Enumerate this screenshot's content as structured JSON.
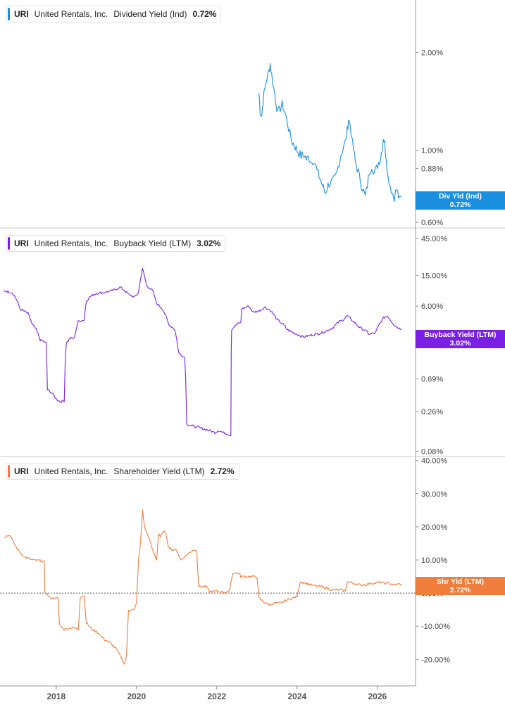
{
  "chart_data": [
    {
      "type": "line",
      "ticker": "URI",
      "company": "United Rentals, Inc.",
      "metric": "Dividend Yield (Ind)",
      "current": "0.72%",
      "tag_label": "Div Yld (Ind)",
      "color": "#1a8fe0",
      "scale": "log",
      "ylim": [
        0.58,
        2.9
      ],
      "yticks": [
        {
          "v": 2.0,
          "label": "2.00%"
        },
        {
          "v": 1.0,
          "label": "1.00%"
        },
        {
          "v": 0.88,
          "label": "0.88%"
        },
        {
          "v": 0.6,
          "label": "0.60%"
        }
      ],
      "series": [
        {
          "points": [
            [
              2023.05,
              1.5
            ],
            [
              2023.08,
              1.32
            ],
            [
              2023.12,
              1.28
            ],
            [
              2023.15,
              1.42
            ],
            [
              2023.2,
              1.55
            ],
            [
              2023.25,
              1.68
            ],
            [
              2023.3,
              1.75
            ],
            [
              2023.33,
              1.85
            ],
            [
              2023.37,
              1.7
            ],
            [
              2023.42,
              1.55
            ],
            [
              2023.47,
              1.42
            ],
            [
              2023.52,
              1.3
            ],
            [
              2023.58,
              1.35
            ],
            [
              2023.63,
              1.38
            ],
            [
              2023.7,
              1.3
            ],
            [
              2023.76,
              1.22
            ],
            [
              2023.82,
              1.12
            ],
            [
              2023.88,
              1.06
            ],
            [
              2023.93,
              1.04
            ],
            [
              2024.0,
              1.0
            ],
            [
              2024.05,
              0.98
            ],
            [
              2024.1,
              0.96
            ],
            [
              2024.17,
              0.97
            ],
            [
              2024.23,
              0.94
            ],
            [
              2024.3,
              0.95
            ],
            [
              2024.36,
              0.92
            ],
            [
              2024.42,
              0.94
            ],
            [
              2024.5,
              0.86
            ],
            [
              2024.57,
              0.82
            ],
            [
              2024.63,
              0.78
            ],
            [
              2024.7,
              0.74
            ],
            [
              2024.77,
              0.78
            ],
            [
              2024.83,
              0.8
            ],
            [
              2024.88,
              0.8
            ],
            [
              2024.95,
              0.82
            ],
            [
              2025.0,
              0.86
            ],
            [
              2025.05,
              0.92
            ],
            [
              2025.1,
              0.98
            ],
            [
              2025.15,
              1.02
            ],
            [
              2025.2,
              1.06
            ],
            [
              2025.25,
              1.15
            ],
            [
              2025.28,
              1.25
            ],
            [
              2025.32,
              1.2
            ],
            [
              2025.38,
              1.05
            ],
            [
              2025.45,
              0.92
            ],
            [
              2025.52,
              0.86
            ],
            [
              2025.58,
              0.8
            ],
            [
              2025.65,
              0.75
            ],
            [
              2025.7,
              0.72
            ],
            [
              2025.75,
              0.78
            ],
            [
              2025.8,
              0.86
            ],
            [
              2025.86,
              0.9
            ],
            [
              2025.92,
              0.85
            ],
            [
              2025.98,
              0.88
            ],
            [
              2026.03,
              0.92
            ],
            [
              2026.08,
              0.95
            ],
            [
              2026.12,
              1.02
            ],
            [
              2026.15,
              1.1
            ],
            [
              2026.18,
              1.05
            ],
            [
              2026.22,
              0.95
            ],
            [
              2026.27,
              0.82
            ],
            [
              2026.32,
              0.78
            ],
            [
              2026.37,
              0.74
            ],
            [
              2026.42,
              0.72
            ],
            [
              2026.48,
              0.76
            ],
            [
              2026.55,
              0.7
            ],
            [
              2026.6,
              0.72
            ]
          ]
        }
      ]
    },
    {
      "type": "line",
      "ticker": "URI",
      "company": "United Rentals, Inc.",
      "metric": "Buyback Yield (LTM)",
      "current": "3.02%",
      "tag_label": "Buyback Yield (LTM)",
      "color": "#7b1fe6",
      "scale": "log",
      "ylim": [
        0.07,
        60
      ],
      "yticks": [
        {
          "v": 45,
          "label": "45.00%"
        },
        {
          "v": 15,
          "label": "15.00%"
        },
        {
          "v": 6,
          "label": "6.00%"
        },
        {
          "v": 2,
          "label": "2.00%"
        },
        {
          "v": 0.69,
          "label": "0.69%"
        },
        {
          "v": 0.26,
          "label": "0.26%"
        },
        {
          "v": 0.08,
          "label": "0.08%"
        }
      ],
      "series": [
        {
          "points": [
            [
              2016.7,
              9.5
            ],
            [
              2016.9,
              9.0
            ],
            [
              2017.0,
              7.5
            ],
            [
              2017.1,
              5.5
            ],
            [
              2017.3,
              4.8
            ],
            [
              2017.4,
              3.5
            ],
            [
              2017.5,
              3.0
            ],
            [
              2017.6,
              2.2
            ],
            [
              2017.75,
              2.0
            ],
            [
              2017.78,
              0.5
            ],
            [
              2017.9,
              0.45
            ],
            [
              2018.0,
              0.38
            ],
            [
              2018.1,
              0.35
            ],
            [
              2018.2,
              0.36
            ],
            [
              2018.25,
              2.0
            ],
            [
              2018.35,
              2.3
            ],
            [
              2018.45,
              2.3
            ],
            [
              2018.55,
              3.8
            ],
            [
              2018.7,
              4.0
            ],
            [
              2018.75,
              7.0
            ],
            [
              2018.85,
              8.0
            ],
            [
              2019.0,
              8.8
            ],
            [
              2019.2,
              9.0
            ],
            [
              2019.4,
              9.5
            ],
            [
              2019.6,
              10.5
            ],
            [
              2019.8,
              8.5
            ],
            [
              2019.95,
              7.8
            ],
            [
              2020.05,
              9.0
            ],
            [
              2020.15,
              18.0
            ],
            [
              2020.25,
              11.0
            ],
            [
              2020.4,
              9.5
            ],
            [
              2020.5,
              6.5
            ],
            [
              2020.65,
              5.5
            ],
            [
              2020.8,
              3.5
            ],
            [
              2020.95,
              3.0
            ],
            [
              2021.05,
              1.5
            ],
            [
              2021.2,
              1.3
            ],
            [
              2021.25,
              0.18
            ],
            [
              2021.4,
              0.17
            ],
            [
              2021.6,
              0.16
            ],
            [
              2021.8,
              0.15
            ],
            [
              2021.95,
              0.14
            ],
            [
              2022.05,
              0.15
            ],
            [
              2022.15,
              0.14
            ],
            [
              2022.35,
              0.13
            ],
            [
              2022.37,
              3.0
            ],
            [
              2022.5,
              3.5
            ],
            [
              2022.6,
              3.7
            ],
            [
              2022.62,
              5.5
            ],
            [
              2022.8,
              6.0
            ],
            [
              2022.9,
              5.0
            ],
            [
              2023.05,
              5.2
            ],
            [
              2023.2,
              5.8
            ],
            [
              2023.35,
              5.2
            ],
            [
              2023.5,
              4.0
            ],
            [
              2023.65,
              3.5
            ],
            [
              2023.75,
              3.0
            ],
            [
              2023.85,
              2.8
            ],
            [
              2024.0,
              2.6
            ],
            [
              2024.15,
              2.4
            ],
            [
              2024.3,
              2.5
            ],
            [
              2024.45,
              2.6
            ],
            [
              2024.6,
              2.7
            ],
            [
              2024.75,
              2.9
            ],
            [
              2024.9,
              3.2
            ],
            [
              2025.05,
              3.8
            ],
            [
              2025.15,
              4.0
            ],
            [
              2025.25,
              4.5
            ],
            [
              2025.4,
              3.8
            ],
            [
              2025.55,
              3.2
            ],
            [
              2025.7,
              2.9
            ],
            [
              2025.8,
              2.6
            ],
            [
              2025.95,
              2.7
            ],
            [
              2026.05,
              3.5
            ],
            [
              2026.15,
              4.2
            ],
            [
              2026.25,
              4.5
            ],
            [
              2026.35,
              3.8
            ],
            [
              2026.45,
              3.3
            ],
            [
              2026.55,
              3.1
            ],
            [
              2026.6,
              3.02
            ]
          ]
        }
      ]
    },
    {
      "type": "line",
      "ticker": "URI",
      "company": "United Rentals, Inc.",
      "metric": "Shareholder Yield (LTM)",
      "current": "2.72%",
      "tag_label": "Shr Yld (LTM)",
      "color": "#f07d3c",
      "scale": "linear",
      "ylim": [
        -28,
        41
      ],
      "yticks": [
        {
          "v": 40,
          "label": "40.00%"
        },
        {
          "v": 30,
          "label": "30.00%"
        },
        {
          "v": 20,
          "label": "20.00%"
        },
        {
          "v": 10,
          "label": "10.00%"
        },
        {
          "v": 0,
          "label": "0.00%"
        },
        {
          "v": -10,
          "label": "-10.00%"
        },
        {
          "v": -20,
          "label": "-20.00%"
        }
      ],
      "zero_line": true,
      "series": [
        {
          "points": [
            [
              2016.7,
              17
            ],
            [
              2016.85,
              17.5
            ],
            [
              2016.95,
              15
            ],
            [
              2017.05,
              13
            ],
            [
              2017.2,
              11
            ],
            [
              2017.4,
              10
            ],
            [
              2017.6,
              9.8
            ],
            [
              2017.7,
              9.5
            ],
            [
              2017.72,
              0.5
            ],
            [
              2017.85,
              -1.5
            ],
            [
              2018.0,
              -1.5
            ],
            [
              2018.05,
              -1.7
            ],
            [
              2018.08,
              -9.5
            ],
            [
              2018.2,
              -11
            ],
            [
              2018.35,
              -10.5
            ],
            [
              2018.45,
              -10.5
            ],
            [
              2018.55,
              -11
            ],
            [
              2018.6,
              -1
            ],
            [
              2018.7,
              -1
            ],
            [
              2018.75,
              -9
            ],
            [
              2018.9,
              -11
            ],
            [
              2019.05,
              -12
            ],
            [
              2019.2,
              -14
            ],
            [
              2019.35,
              -15
            ],
            [
              2019.5,
              -17
            ],
            [
              2019.6,
              -19
            ],
            [
              2019.7,
              -21.5
            ],
            [
              2019.75,
              -19
            ],
            [
              2019.8,
              -5
            ],
            [
              2019.85,
              -5
            ],
            [
              2019.95,
              -5
            ],
            [
              2020.0,
              -3
            ],
            [
              2020.05,
              10
            ],
            [
              2020.1,
              15
            ],
            [
              2020.15,
              25
            ],
            [
              2020.2,
              20
            ],
            [
              2020.3,
              17
            ],
            [
              2020.4,
              13
            ],
            [
              2020.5,
              10
            ],
            [
              2020.55,
              18
            ],
            [
              2020.6,
              17
            ],
            [
              2020.7,
              19
            ],
            [
              2020.8,
              14
            ],
            [
              2020.9,
              13
            ],
            [
              2021.0,
              13
            ],
            [
              2021.1,
              10
            ],
            [
              2021.2,
              11
            ],
            [
              2021.3,
              12
            ],
            [
              2021.4,
              13
            ],
            [
              2021.5,
              13
            ],
            [
              2021.55,
              2
            ],
            [
              2021.75,
              2
            ],
            [
              2021.8,
              0.5
            ],
            [
              2022.0,
              0.5
            ],
            [
              2022.2,
              0.3
            ],
            [
              2022.3,
              0.3
            ],
            [
              2022.4,
              6
            ],
            [
              2022.55,
              6
            ],
            [
              2022.6,
              5
            ],
            [
              2022.7,
              5
            ],
            [
              2022.9,
              5
            ],
            [
              2023.0,
              5
            ],
            [
              2023.05,
              -1.5
            ],
            [
              2023.15,
              -2.5
            ],
            [
              2023.3,
              -3.5
            ],
            [
              2023.45,
              -3
            ],
            [
              2023.6,
              -3
            ],
            [
              2023.75,
              -2
            ],
            [
              2023.9,
              -1.5
            ],
            [
              2024.0,
              -1
            ],
            [
              2024.08,
              3.5
            ],
            [
              2024.2,
              3
            ],
            [
              2024.35,
              2.5
            ],
            [
              2024.5,
              2
            ],
            [
              2024.6,
              2
            ],
            [
              2024.75,
              1.5
            ],
            [
              2024.85,
              1
            ],
            [
              2025.0,
              1
            ],
            [
              2025.1,
              1
            ],
            [
              2025.2,
              0.5
            ],
            [
              2025.25,
              3.5
            ],
            [
              2025.4,
              3
            ],
            [
              2025.55,
              2.5
            ],
            [
              2025.7,
              2.5
            ],
            [
              2025.85,
              3
            ],
            [
              2025.95,
              3
            ],
            [
              2026.05,
              3.3
            ],
            [
              2026.15,
              3
            ],
            [
              2026.3,
              3
            ],
            [
              2026.4,
              2.5
            ],
            [
              2026.55,
              2.7
            ],
            [
              2026.6,
              2.72
            ]
          ]
        }
      ]
    }
  ],
  "x_axis": {
    "ticks": [
      {
        "v": 2018,
        "label": "2018"
      },
      {
        "v": 2020,
        "label": "2020"
      },
      {
        "v": 2022,
        "label": "2022"
      },
      {
        "v": 2024,
        "label": "2024"
      },
      {
        "v": 2026,
        "label": "2026"
      }
    ]
  }
}
